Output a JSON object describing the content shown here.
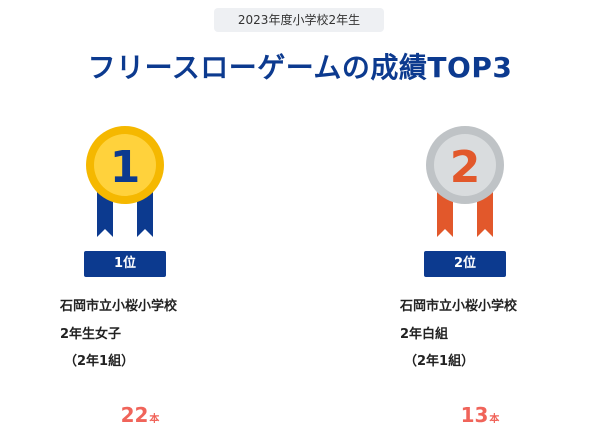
{
  "header": {
    "year_label": "2023年度小学校2年生",
    "title": "フリースローゲームの成績TOP3"
  },
  "entries": [
    {
      "medal_number": "1",
      "rank_label": "1位",
      "school": "石岡市立小桜小学校",
      "group": "2年生女子",
      "class": "（2年1組）",
      "score": "22",
      "unit": "本",
      "colors": {
        "medal_outer": "#f5b800",
        "medal_inner": "#ffd23c",
        "medal_number": "#0c3a8f",
        "ribbon": "#0c3a8f"
      }
    },
    {
      "medal_number": "2",
      "rank_label": "2位",
      "school": "石岡市立小桜小学校",
      "group": "2年白組",
      "class": "（2年1組）",
      "score": "13",
      "unit": "本",
      "colors": {
        "medal_outer": "#bfc3c6",
        "medal_inner": "#d9dcde",
        "medal_number": "#e2582b",
        "ribbon": "#e2582b"
      }
    }
  ],
  "theme": {
    "title_color": "#0c3a8f",
    "badge_color": "#0c3a8f",
    "score_color": "#f0645a"
  }
}
